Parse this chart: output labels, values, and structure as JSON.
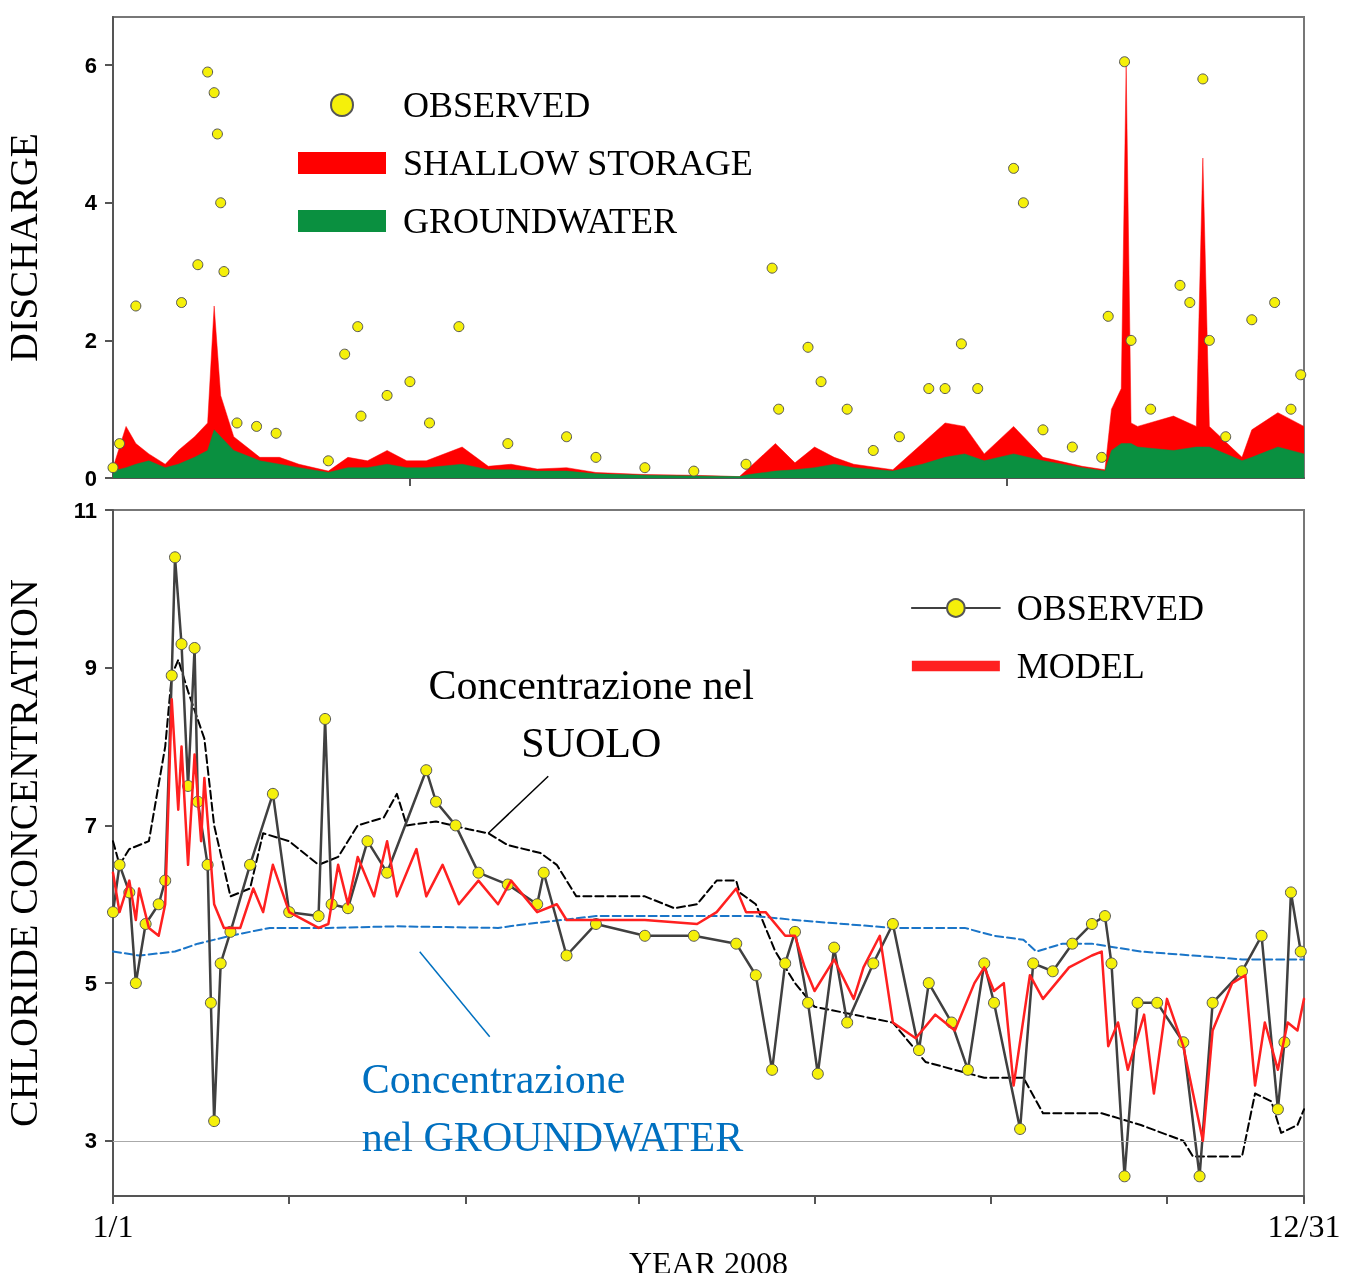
{
  "chart_data": [
    {
      "type": "area",
      "stacked": true,
      "ylabel": "DISCHARGE",
      "xlim": [
        "2008-01-01",
        "2008-12-31"
      ],
      "xticks": [
        {
          "value": "2008-04-01",
          "label": null
        },
        {
          "value": "2008-10-01",
          "label": null
        }
      ],
      "ylim": [
        0,
        6.7
      ],
      "yticks": [
        0,
        2,
        4,
        6
      ],
      "tick_labels": "y",
      "legend": "top left",
      "x": [
        "2008-01-01",
        "2008-01-05",
        "2008-01-08",
        "2008-01-12",
        "2008-01-17",
        "2008-01-21",
        "2008-01-26",
        "2008-01-30",
        "2008-02-01",
        "2008-02-03",
        "2008-02-07",
        "2008-02-15",
        "2008-02-21",
        "2008-02-27",
        "2008-03-07",
        "2008-03-13",
        "2008-03-19",
        "2008-03-25",
        "2008-03-31",
        "2008-04-06",
        "2008-04-17",
        "2008-04-25",
        "2008-05-02",
        "2008-05-10",
        "2008-05-19",
        "2008-05-28",
        "2008-06-12",
        "2008-06-27",
        "2008-07-11",
        "2008-07-14",
        "2008-07-22",
        "2008-07-28",
        "2008-08-03",
        "2008-08-09",
        "2008-08-15",
        "2008-08-27",
        "2008-09-05",
        "2008-09-12",
        "2008-09-18",
        "2008-09-24",
        "2008-10-03",
        "2008-10-12",
        "2008-10-24",
        "2008-10-31",
        "2008-11-02",
        "2008-11-05",
        "2008-11-06T12:00",
        "2008-11-08",
        "2008-11-10",
        "2008-11-21",
        "2008-11-28",
        "2008-11-30",
        "2008-12-02",
        "2008-12-12",
        "2008-12-15",
        "2008-12-23",
        "2008-12-31"
      ],
      "series": [
        {
          "name": "GROUNDWATER",
          "color": "#0a9040",
          "values": [
            0.1,
            0.15,
            0.2,
            0.25,
            0.15,
            0.2,
            0.3,
            0.4,
            0.7,
            0.6,
            0.4,
            0.25,
            0.2,
            0.15,
            0.08,
            0.15,
            0.15,
            0.2,
            0.15,
            0.15,
            0.2,
            0.12,
            0.12,
            0.1,
            0.1,
            0.06,
            0.04,
            0.03,
            0.02,
            0.05,
            0.1,
            0.12,
            0.15,
            0.2,
            0.15,
            0.1,
            0.2,
            0.3,
            0.35,
            0.25,
            0.35,
            0.25,
            0.15,
            0.1,
            0.4,
            0.5,
            0.5,
            0.5,
            0.45,
            0.4,
            0.45,
            0.45,
            0.45,
            0.25,
            0.3,
            0.45,
            0.35
          ]
        },
        {
          "name": "SHALLOW STORAGE",
          "color": "#ff0000",
          "values": [
            0.05,
            0.6,
            0.3,
            0.1,
            0.05,
            0.2,
            0.3,
            0.4,
            1.8,
            0.6,
            0.2,
            0.05,
            0.1,
            0.05,
            0.02,
            0.15,
            0.1,
            0.2,
            0.1,
            0.1,
            0.25,
            0.05,
            0.08,
            0.03,
            0.05,
            0.02,
            0.01,
            0.01,
            0,
            0.1,
            0.4,
            0.1,
            0.3,
            0.1,
            0.05,
            0.02,
            0.3,
            0.5,
            0.4,
            0.1,
            0.4,
            0.05,
            0.02,
            0.02,
            0.6,
            0.8,
            5.5,
            0.3,
            0.3,
            0.5,
            0.3,
            4.2,
            0.3,
            0.05,
            0.4,
            0.5,
            0.4
          ]
        },
        {
          "name": "OBSERVED",
          "type": "scatter",
          "marker": "circle",
          "color": "#f5f00a",
          "x": [
            "2008-01-01",
            "2008-01-03",
            "2008-01-08",
            "2008-01-22",
            "2008-01-27",
            "2008-01-30",
            "2008-02-01",
            "2008-02-02",
            "2008-02-03",
            "2008-02-04",
            "2008-02-08",
            "2008-02-14",
            "2008-02-20",
            "2008-03-07",
            "2008-03-12",
            "2008-03-16",
            "2008-03-17",
            "2008-03-25",
            "2008-04-01",
            "2008-04-07",
            "2008-04-16",
            "2008-05-01",
            "2008-05-19",
            "2008-05-28",
            "2008-06-12",
            "2008-06-27",
            "2008-07-13",
            "2008-07-21",
            "2008-07-23",
            "2008-08-01",
            "2008-08-05",
            "2008-08-13",
            "2008-08-21",
            "2008-08-29",
            "2008-09-07",
            "2008-09-12",
            "2008-09-17",
            "2008-09-22",
            "2008-10-03",
            "2008-10-06",
            "2008-10-12",
            "2008-10-21",
            "2008-10-30",
            "2008-11-01",
            "2008-11-06",
            "2008-11-08",
            "2008-11-14",
            "2008-11-23",
            "2008-11-26",
            "2008-11-30",
            "2008-12-02",
            "2008-12-07",
            "2008-12-15",
            "2008-12-22",
            "2008-12-27",
            "2008-12-30"
          ],
          "values": [
            0.15,
            0.5,
            2.5,
            2.55,
            3.1,
            5.9,
            5.6,
            5.0,
            4.0,
            3.0,
            0.8,
            0.75,
            0.65,
            0.25,
            1.8,
            2.2,
            0.9,
            1.2,
            1.4,
            0.8,
            2.2,
            0.5,
            0.6,
            0.3,
            0.15,
            0.1,
            0.2,
            3.05,
            1.0,
            1.9,
            1.4,
            1.0,
            0.4,
            0.6,
            1.3,
            1.3,
            1.95,
            1.3,
            4.5,
            4.0,
            0.7,
            0.45,
            0.3,
            2.35,
            6.05,
            2.0,
            1.0,
            2.8,
            2.55,
            5.8,
            2.0,
            0.6,
            2.3,
            2.55,
            1.0,
            1.5
          ]
        }
      ]
    },
    {
      "type": "line",
      "ylabel": "CHLORIDE CONCENTRATION",
      "xlabel": "YEAR 2008",
      "xlim": [
        "2008-01-01",
        "2008-12-31"
      ],
      "xticks": [
        {
          "value": "2008-01-01",
          "label": "1/1"
        },
        {
          "value": "2008-02-24",
          "label": null
        },
        {
          "value": "2008-04-18",
          "label": null
        },
        {
          "value": "2008-06-10",
          "label": null
        },
        {
          "value": "2008-08-03",
          "label": null
        },
        {
          "value": "2008-09-26",
          "label": null
        },
        {
          "value": "2008-11-19",
          "label": null
        },
        {
          "value": "2008-12-31",
          "label": "12/31"
        }
      ],
      "ylim": [
        2.3,
        11
      ],
      "yticks": [
        3,
        5,
        7,
        9,
        11
      ],
      "legend": "top right",
      "ref_lines": [
        {
          "axis": "y",
          "value": 3,
          "color": "#aaaaaa"
        }
      ],
      "annotations": [
        {
          "text": "Concentrazione nel\nSUOLO",
          "x": "2008-04-25",
          "y": 6.9
        },
        {
          "text": "Concentrazione\nnel GROUNDWATER",
          "x": "2008-04-04",
          "y": 5.65
        }
      ],
      "series": [
        {
          "color": "#000000",
          "line_style": "dashed",
          "x": [
            "2008-01-01",
            "2008-01-03",
            "2008-01-06",
            "2008-01-12",
            "2008-01-17",
            "2008-01-19",
            "2008-01-21",
            "2008-01-24",
            "2008-01-29",
            "2008-02-01",
            "2008-02-06",
            "2008-02-12",
            "2008-02-16",
            "2008-02-24",
            "2008-03-04",
            "2008-03-10",
            "2008-03-16",
            "2008-03-24",
            "2008-03-28",
            "2008-03-31",
            "2008-04-09",
            "2008-04-19",
            "2008-04-25",
            "2008-05-01",
            "2008-05-11",
            "2008-05-16",
            "2008-05-22",
            "2008-05-28",
            "2008-06-12",
            "2008-06-21",
            "2008-06-28",
            "2008-07-04",
            "2008-07-10",
            "2008-07-11",
            "2008-07-16",
            "2008-07-22",
            "2008-07-28",
            "2008-08-03",
            "2008-08-15",
            "2008-08-27",
            "2008-09-06",
            "2008-09-15",
            "2008-09-24",
            "2008-10-06",
            "2008-10-12",
            "2008-10-21",
            "2008-10-30",
            "2008-11-11",
            "2008-11-24",
            "2008-11-27",
            "2008-12-06",
            "2008-12-12",
            "2008-12-16",
            "2008-12-21",
            "2008-12-24",
            "2008-12-29",
            "2008-12-31"
          ],
          "values": [
            6.8,
            6.5,
            6.7,
            6.8,
            8.0,
            8.9,
            9.1,
            8.7,
            8.1,
            7.0,
            6.1,
            6.2,
            6.9,
            6.8,
            6.5,
            6.6,
            7.0,
            7.1,
            7.4,
            7.0,
            7.05,
            6.95,
            6.9,
            6.75,
            6.65,
            6.5,
            6.1,
            6.1,
            6.1,
            5.95,
            6.0,
            6.3,
            6.3,
            6.15,
            6.0,
            5.4,
            5.0,
            4.7,
            4.6,
            4.5,
            4.0,
            3.9,
            3.8,
            3.8,
            3.35,
            3.35,
            3.35,
            3.2,
            3.0,
            2.8,
            2.8,
            2.8,
            3.6,
            3.5,
            3.1,
            3.2,
            3.4
          ]
        },
        {
          "color": "#1a75c8",
          "line_style": "dashed",
          "x": [
            "2008-01-01",
            "2008-01-09",
            "2008-01-20",
            "2008-01-27",
            "2008-02-06",
            "2008-02-18",
            "2008-03-07",
            "2008-03-28",
            "2008-04-28",
            "2008-05-07",
            "2008-05-28",
            "2008-06-28",
            "2008-07-16",
            "2008-07-28",
            "2008-08-12",
            "2008-08-27",
            "2008-09-06",
            "2008-09-18",
            "2008-09-27",
            "2008-10-06",
            "2008-10-10",
            "2008-10-18",
            "2008-10-27",
            "2008-11-11",
            "2008-11-27",
            "2008-12-12",
            "2008-12-31"
          ],
          "values": [
            5.4,
            5.35,
            5.4,
            5.5,
            5.6,
            5.7,
            5.7,
            5.72,
            5.7,
            5.75,
            5.85,
            5.85,
            5.85,
            5.8,
            5.75,
            5.7,
            5.7,
            5.7,
            5.6,
            5.55,
            5.4,
            5.5,
            5.5,
            5.4,
            5.35,
            5.3,
            5.3
          ]
        },
        {
          "name": "OBSERVED",
          "color": "#404040",
          "marker": "circle",
          "x": [
            "2008-01-01",
            "2008-01-03",
            "2008-01-06",
            "2008-01-08",
            "2008-01-11",
            "2008-01-15",
            "2008-01-17",
            "2008-01-19",
            "2008-01-20",
            "2008-01-22",
            "2008-01-24",
            "2008-01-26",
            "2008-01-27",
            "2008-01-30",
            "2008-01-31",
            "2008-02-01",
            "2008-02-03",
            "2008-02-06",
            "2008-02-12",
            "2008-02-19",
            "2008-02-24",
            "2008-03-04",
            "2008-03-06",
            "2008-03-08",
            "2008-03-13",
            "2008-03-19",
            "2008-03-25",
            "2008-04-06",
            "2008-04-09",
            "2008-04-15",
            "2008-04-22",
            "2008-05-01",
            "2008-05-10",
            "2008-05-12",
            "2008-05-19",
            "2008-05-28",
            "2008-06-12",
            "2008-06-27",
            "2008-07-10",
            "2008-07-16",
            "2008-07-21",
            "2008-07-25",
            "2008-07-28",
            "2008-08-01",
            "2008-08-04",
            "2008-08-09",
            "2008-08-13",
            "2008-08-21",
            "2008-08-27",
            "2008-09-04",
            "2008-09-07",
            "2008-09-14",
            "2008-09-19",
            "2008-09-24",
            "2008-09-27",
            "2008-10-05",
            "2008-10-09",
            "2008-10-15",
            "2008-10-21",
            "2008-10-27",
            "2008-10-31",
            "2008-11-02",
            "2008-11-06",
            "2008-11-10",
            "2008-11-16",
            "2008-11-24",
            "2008-11-29",
            "2008-12-03",
            "2008-12-12",
            "2008-12-18",
            "2008-12-23",
            "2008-12-25",
            "2008-12-27",
            "2008-12-30"
          ],
          "values": [
            5.9,
            6.5,
            6.15,
            5.0,
            5.75,
            6.0,
            6.3,
            8.9,
            10.4,
            9.3,
            7.5,
            9.25,
            7.3,
            6.5,
            4.75,
            3.25,
            5.25,
            5.65,
            6.5,
            7.4,
            5.9,
            5.85,
            8.35,
            6.0,
            5.95,
            6.8,
            6.4,
            7.7,
            7.3,
            7.0,
            6.4,
            6.25,
            6.0,
            6.4,
            5.35,
            5.75,
            5.6,
            5.6,
            5.5,
            5.1,
            3.9,
            5.25,
            5.65,
            4.75,
            3.85,
            5.45,
            4.5,
            5.25,
            5.75,
            4.15,
            5.0,
            4.5,
            3.9,
            5.25,
            4.75,
            3.15,
            5.25,
            5.15,
            5.5,
            5.75,
            5.85,
            5.25,
            2.55,
            4.75,
            4.75,
            4.25,
            2.55,
            4.75,
            5.15,
            5.6,
            3.4,
            4.25,
            6.15,
            5.4
          ]
        },
        {
          "name": "MODEL",
          "color": "#ff2020",
          "x": [
            "2008-01-01",
            "2008-01-03",
            "2008-01-06",
            "2008-01-08",
            "2008-01-09",
            "2008-01-12",
            "2008-01-15",
            "2008-01-17",
            "2008-01-19",
            "2008-01-21",
            "2008-01-22",
            "2008-01-24",
            "2008-01-26",
            "2008-01-28",
            "2008-01-29",
            "2008-02-01",
            "2008-02-04",
            "2008-02-09",
            "2008-02-13",
            "2008-02-16",
            "2008-02-19",
            "2008-02-24",
            "2008-03-04",
            "2008-03-07",
            "2008-03-10",
            "2008-03-13",
            "2008-03-16",
            "2008-03-21",
            "2008-03-25",
            "2008-03-28",
            "2008-04-03",
            "2008-04-06",
            "2008-04-11",
            "2008-04-16",
            "2008-04-22",
            "2008-04-28",
            "2008-05-02",
            "2008-05-10",
            "2008-05-16",
            "2008-05-19",
            "2008-05-28",
            "2008-06-12",
            "2008-06-28",
            "2008-07-04",
            "2008-07-10",
            "2008-07-13",
            "2008-07-19",
            "2008-07-25",
            "2008-07-28",
            "2008-07-31",
            "2008-08-03",
            "2008-08-09",
            "2008-08-15",
            "2008-08-18",
            "2008-08-23",
            "2008-08-27",
            "2008-09-03",
            "2008-09-09",
            "2008-09-15",
            "2008-09-21",
            "2008-09-24",
            "2008-09-27",
            "2008-09-30",
            "2008-10-03",
            "2008-10-08",
            "2008-10-12",
            "2008-10-20",
            "2008-10-27",
            "2008-10-30",
            "2008-11-01",
            "2008-11-04",
            "2008-11-07",
            "2008-11-12",
            "2008-11-15",
            "2008-11-19",
            "2008-11-24",
            "2008-11-27",
            "2008-11-30",
            "2008-12-03",
            "2008-12-09",
            "2008-12-13",
            "2008-12-16",
            "2008-12-19",
            "2008-12-23",
            "2008-12-26",
            "2008-12-29",
            "2008-12-31"
          ],
          "values": [
            6.4,
            5.9,
            6.3,
            5.8,
            6.2,
            5.7,
            5.6,
            6.0,
            8.6,
            7.2,
            8.0,
            6.5,
            7.9,
            6.8,
            7.6,
            6.0,
            5.7,
            5.7,
            6.2,
            5.9,
            6.5,
            5.9,
            5.7,
            5.75,
            6.5,
            6.0,
            6.6,
            6.1,
            6.8,
            6.1,
            6.7,
            6.1,
            6.5,
            6.0,
            6.3,
            6.0,
            6.3,
            5.9,
            6.0,
            5.8,
            5.8,
            5.8,
            5.75,
            5.9,
            6.2,
            5.9,
            5.9,
            5.6,
            5.6,
            5.2,
            4.9,
            5.3,
            4.8,
            5.2,
            5.6,
            4.5,
            4.3,
            4.6,
            4.4,
            5.0,
            5.2,
            4.9,
            5.0,
            3.7,
            5.1,
            4.8,
            5.2,
            5.35,
            5.4,
            4.2,
            4.5,
            3.9,
            4.6,
            3.6,
            4.8,
            4.2,
            3.6,
            3.0,
            4.4,
            5.0,
            5.1,
            3.7,
            4.5,
            3.9,
            4.5,
            4.4,
            4.8
          ]
        }
      ]
    }
  ]
}
